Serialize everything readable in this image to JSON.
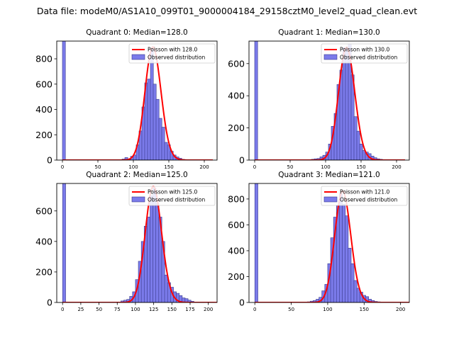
{
  "suptitle": "Data file: modeM0/AS1A10_099T01_9000004184_29158cztM0_level2_quad_clean.evt",
  "colors": {
    "bar_fill": "#7b7bea",
    "bar_edge": "#3a3a8c",
    "poisson_line": "#ff0000",
    "axes": "#000000",
    "background": "#ffffff"
  },
  "chart_data": [
    {
      "type": "bar",
      "title": "Quadrant 0: Median=128.0",
      "xlim": [
        -8,
        218
      ],
      "ylim": [
        0,
        940
      ],
      "yticks": [
        0,
        200,
        400,
        600,
        800
      ],
      "xticks": [
        0,
        50,
        100,
        150,
        200
      ],
      "bin_width": 4.2,
      "bins_x": [
        0,
        84,
        88,
        92,
        96,
        100,
        104,
        108,
        112,
        116,
        120,
        124,
        128,
        132,
        136,
        140,
        144,
        148,
        152,
        156,
        160,
        164,
        168,
        172
      ],
      "bins_y": [
        940,
        8,
        20,
        5,
        30,
        40,
        120,
        230,
        420,
        610,
        640,
        880,
        600,
        480,
        330,
        260,
        140,
        120,
        70,
        40,
        25,
        15,
        6,
        3
      ],
      "poisson_lambda": 128.0,
      "poisson_scale": 893,
      "poisson_x_range": [
        0,
        212
      ],
      "legend": [
        "Poisson with 128.0",
        "Observed distribution"
      ]
    },
    {
      "type": "bar",
      "title": "Quadrant 1: Median=130.0",
      "xlim": [
        -8,
        218
      ],
      "ylim": [
        0,
        740
      ],
      "yticks": [
        0,
        200,
        400,
        600
      ],
      "xticks": [
        0,
        50,
        100,
        150,
        200
      ],
      "bin_width": 4.2,
      "bins_x": [
        0,
        80,
        84,
        88,
        92,
        96,
        100,
        104,
        108,
        112,
        116,
        120,
        124,
        128,
        132,
        136,
        140,
        144,
        148,
        152,
        156,
        160,
        164,
        168,
        172,
        176
      ],
      "bins_y": [
        740,
        5,
        8,
        10,
        20,
        30,
        50,
        100,
        210,
        290,
        470,
        560,
        700,
        700,
        720,
        530,
        270,
        180,
        100,
        60,
        50,
        40,
        25,
        15,
        8,
        5
      ],
      "poisson_lambda": 130.0,
      "poisson_scale": 700,
      "poisson_x_range": [
        0,
        212
      ],
      "legend": [
        "Poisson with 130.0",
        "Observed distribution"
      ]
    },
    {
      "type": "bar",
      "title": "Quadrant 2: Median=125.0",
      "xlim": [
        -8,
        212
      ],
      "ylim": [
        0,
        780
      ],
      "yticks": [
        0,
        200,
        400,
        600
      ],
      "xticks": [
        0,
        25,
        50,
        75,
        100,
        125,
        150,
        175,
        200
      ],
      "bin_width": 4.2,
      "bins_x": [
        0,
        80,
        84,
        88,
        92,
        96,
        100,
        104,
        108,
        112,
        116,
        120,
        124,
        128,
        132,
        136,
        140,
        144,
        148,
        152,
        156,
        160,
        164,
        168,
        172,
        176
      ],
      "bins_y": [
        780,
        10,
        15,
        20,
        40,
        70,
        150,
        270,
        400,
        500,
        560,
        700,
        750,
        650,
        560,
        400,
        180,
        130,
        100,
        70,
        60,
        45,
        30,
        25,
        15,
        8
      ],
      "poisson_lambda": 125.0,
      "poisson_scale": 760,
      "poisson_x_range": [
        0,
        212
      ],
      "legend": [
        "Poisson with 125.0",
        "Observed distribution"
      ]
    },
    {
      "type": "bar",
      "title": "Quadrant 3: Median=121.0",
      "xlim": [
        -8,
        212
      ],
      "ylim": [
        0,
        920
      ],
      "yticks": [
        0,
        200,
        400,
        600,
        800
      ],
      "xticks": [
        0,
        50,
        100,
        150,
        200
      ],
      "bin_width": 4.2,
      "bins_x": [
        0,
        72,
        76,
        80,
        84,
        88,
        92,
        96,
        100,
        104,
        108,
        112,
        116,
        120,
        124,
        128,
        132,
        136,
        140,
        144,
        148,
        152,
        156,
        160,
        164,
        168
      ],
      "bins_y": [
        920,
        5,
        10,
        15,
        25,
        40,
        90,
        140,
        300,
        500,
        660,
        750,
        840,
        760,
        670,
        420,
        300,
        170,
        110,
        80,
        55,
        45,
        25,
        15,
        8,
        5
      ],
      "poisson_lambda": 121.0,
      "poisson_scale": 860,
      "poisson_x_range": [
        0,
        212
      ],
      "legend": [
        "Poisson with 121.0",
        "Observed distribution"
      ]
    }
  ]
}
